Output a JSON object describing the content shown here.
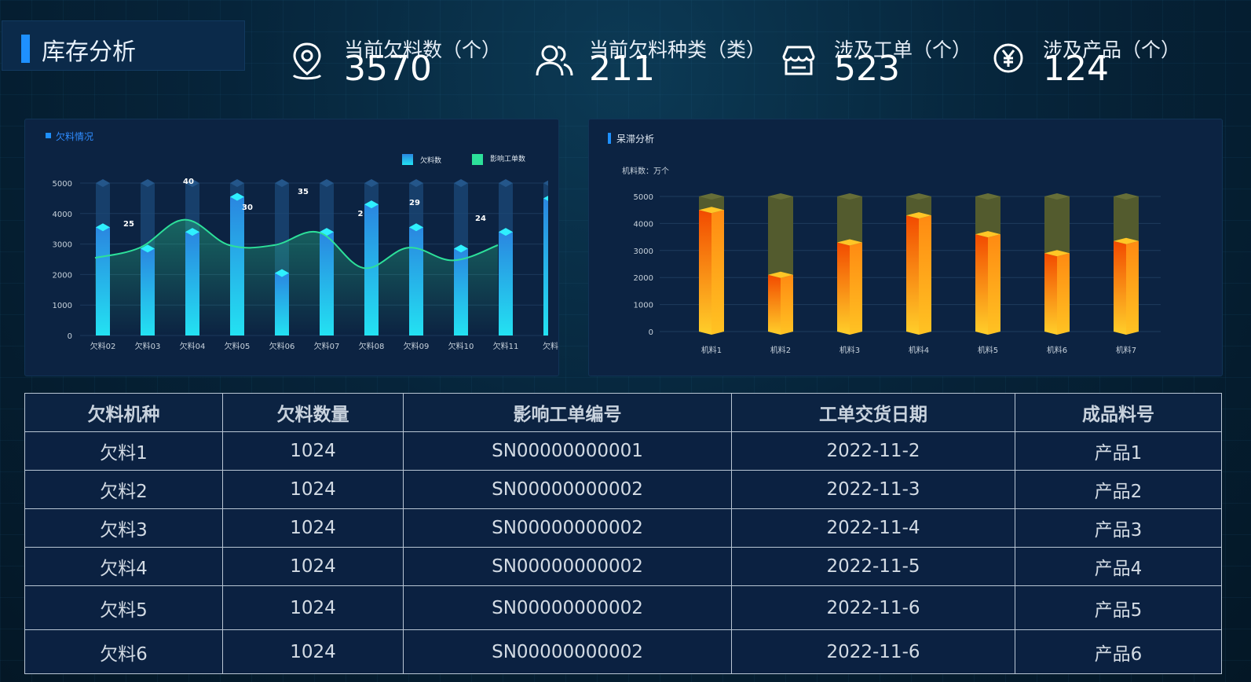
{
  "header": {
    "title": "库存分析"
  },
  "stats": [
    {
      "icon": "location-pin-icon",
      "label": "当前欠料数（个）",
      "value": "3570"
    },
    {
      "icon": "users-icon",
      "label": "当前欠料种类（类）",
      "value": "211"
    },
    {
      "icon": "store-icon",
      "label": "涉及工单（个）",
      "value": "523"
    },
    {
      "icon": "yen-icon",
      "label": "涉及产品（个）",
      "value": "124"
    }
  ],
  "colors": {
    "accent": "#1e90ff",
    "bar_top": "#1fe6f0",
    "bar_bottom": "#2a86e0",
    "line": "#2de09a",
    "orange": "#ff6a00",
    "gold": "#ffc21a",
    "olive": "#535b2e"
  },
  "panel_left": {
    "title": "欠料情况"
  },
  "panel_right": {
    "title": "呆滞分析"
  },
  "chart_data": [
    {
      "type": "bar",
      "title": "欠料情况",
      "categories": [
        "欠料02",
        "欠料03",
        "欠料04",
        "欠料05",
        "欠料06",
        "欠料07",
        "欠料08",
        "欠料09",
        "欠料10",
        "欠料11",
        "欠料"
      ],
      "series": [
        {
          "name": "欠料数",
          "type": "bar",
          "values": [
            3550,
            2850,
            3400,
            4550,
            2050,
            3400,
            4300,
            3550,
            2850,
            3400,
            4500
          ]
        },
        {
          "name": "影响工单数",
          "type": "line",
          "values": [
            25,
            29,
            40,
            30,
            30,
            35,
            21,
            29,
            24,
            30,
            null
          ]
        }
      ],
      "data_labels": [
        "25",
        "40",
        "30",
        "35",
        "2",
        "29",
        "24"
      ],
      "yticks": [
        "0",
        "1000",
        "2000",
        "3000",
        "4000",
        "5000"
      ],
      "ylim": [
        0,
        5000
      ],
      "legend": "top-right"
    },
    {
      "type": "bar",
      "title": "呆滞分析",
      "ylabel": "机料数：万个",
      "categories": [
        "机料1",
        "机料2",
        "机料3",
        "机料4",
        "机料5",
        "机料6",
        "机料7"
      ],
      "series": [
        {
          "name": "",
          "values": [
            4500,
            2100,
            3300,
            4300,
            3600,
            2900,
            3350
          ]
        }
      ],
      "background_max": 5000,
      "yticks": [
        "0",
        "1000",
        "2000",
        "3000",
        "4000",
        "5000"
      ],
      "ylim": [
        0,
        5000
      ]
    }
  ],
  "table": {
    "columns": [
      "欠料机种",
      "欠料数量",
      "影响工单编号",
      "工单交货日期",
      "成品料号"
    ],
    "rows": [
      [
        "欠料1",
        "1024",
        "SN00000000001",
        "2022-11-2",
        "产品1"
      ],
      [
        "欠料2",
        "1024",
        "SN00000000002",
        "2022-11-3",
        "产品2"
      ],
      [
        "欠料3",
        "1024",
        "SN00000000002",
        "2022-11-4",
        "产品3"
      ],
      [
        "欠料4",
        "1024",
        "SN00000000002",
        "2022-11-5",
        "产品4"
      ],
      [
        "欠料5",
        "1024",
        "SN00000000002",
        "2022-11-6",
        "产品5"
      ],
      [
        "欠料6",
        "1024",
        "SN00000000002",
        "2022-11-6",
        "产品6"
      ]
    ]
  }
}
